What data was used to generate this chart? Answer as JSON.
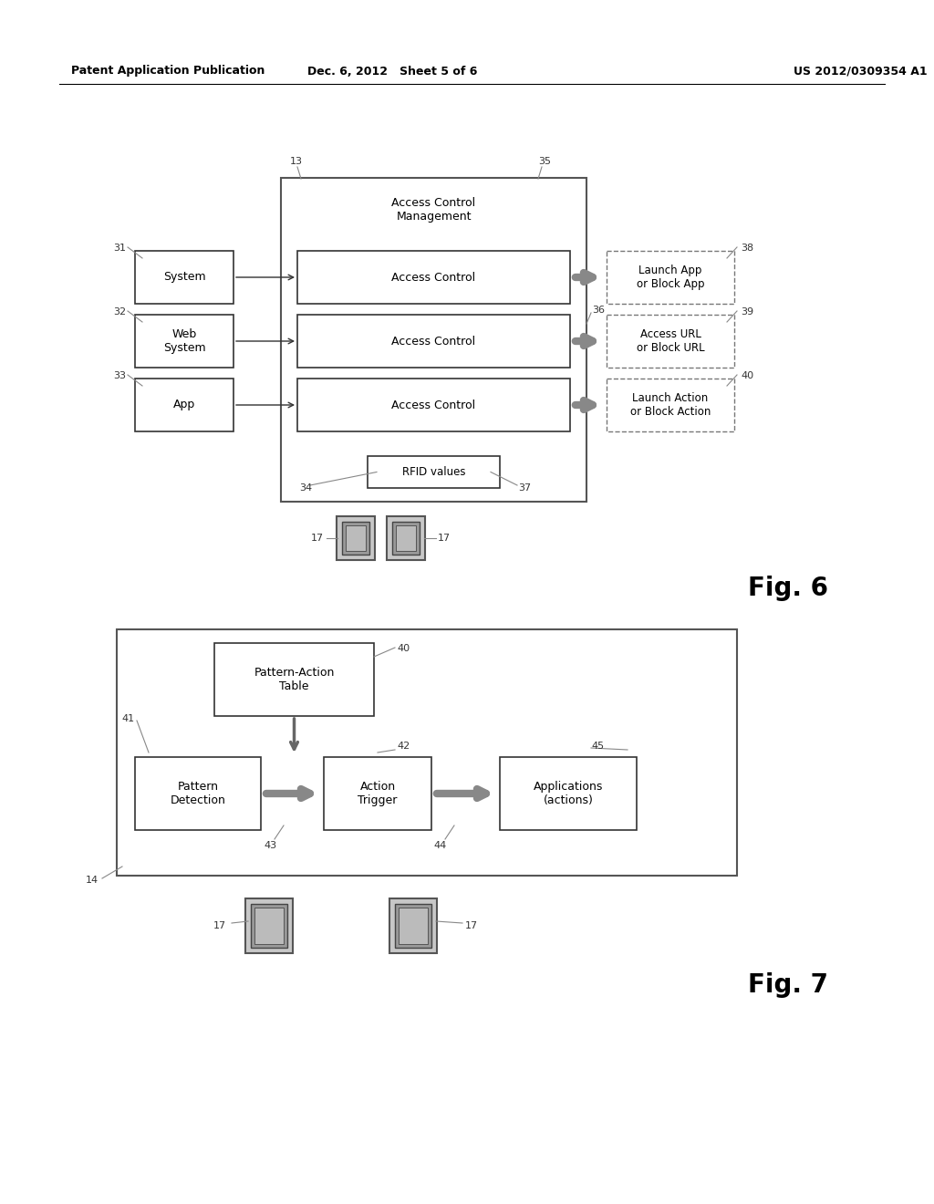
{
  "bg_color": "#ffffff",
  "header_left": "Patent Application Publication",
  "header_mid": "Dec. 6, 2012   Sheet 5 of 6",
  "header_right": "US 2012/0309354 A1",
  "fig6_label": "Fig. 6",
  "fig7_label": "Fig. 7"
}
